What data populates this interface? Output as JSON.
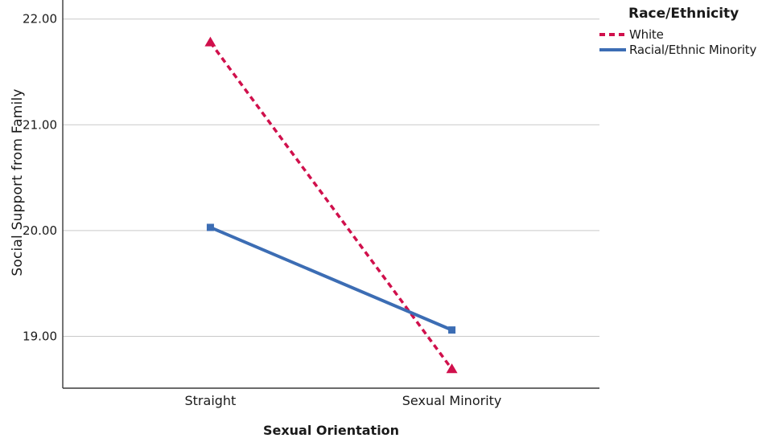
{
  "chart_data": {
    "type": "line",
    "title": "",
    "categories": [
      "Straight",
      "Sexual Minority"
    ],
    "series": [
      {
        "name": "White",
        "values": [
          21.78,
          18.69
        ],
        "color": "#D0104C",
        "line_style": "dashed",
        "marker": "triangle"
      },
      {
        "name": "Racial/Ethnic Minority",
        "values": [
          20.03,
          19.06
        ],
        "color": "#3C6DB4",
        "line_style": "solid",
        "marker": "square"
      }
    ],
    "xlabel": "Sexual Orientation",
    "ylabel": "Social Support from Family",
    "legend_title": "Race/Ethnicity",
    "legend_position": "top-right",
    "yticks": [
      {
        "value": 22,
        "label": "22.00"
      },
      {
        "value": 21,
        "label": "21.00"
      },
      {
        "value": 20,
        "label": "20.00"
      },
      {
        "value": 19,
        "label": "19.00"
      }
    ],
    "ylim": [
      18.51,
      22.18
    ],
    "grid": true
  },
  "colors": {
    "grid": "#C9C9C9",
    "axis": "#3A3A3A",
    "text": "#1A1A1A",
    "background": "#FFFFFF"
  }
}
